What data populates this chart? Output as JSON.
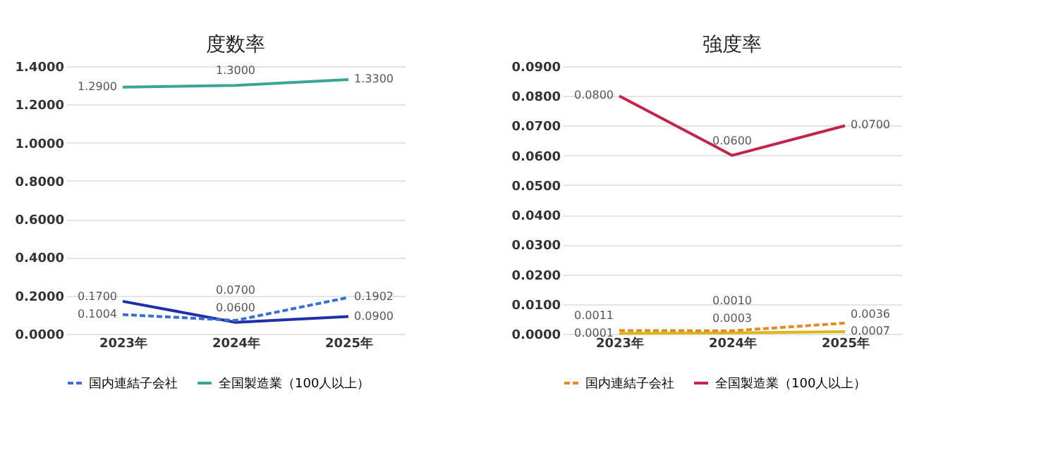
{
  "chart_data": [
    {
      "type": "line",
      "title": "度数率",
      "categories": [
        "2023年",
        "2024年",
        "2025年"
      ],
      "ylim": [
        0,
        1.4
      ],
      "yticks": [
        {
          "value": 0,
          "label": "0.0000"
        },
        {
          "value": 0.2,
          "label": "0.2000"
        },
        {
          "value": 0.4,
          "label": "0.4000"
        },
        {
          "value": 0.6,
          "label": "0.6000"
        },
        {
          "value": 0.8,
          "label": "0.8000"
        },
        {
          "value": 1.0,
          "label": "1.0000"
        },
        {
          "value": 1.2,
          "label": "1.2000"
        },
        {
          "value": 1.4,
          "label": "1.4000"
        }
      ],
      "grid": "y",
      "legend": "bottom",
      "marker": "none",
      "data_labels": true,
      "series": [
        {
          "color": "#1f2fa8",
          "line_style": "solid",
          "values": [
            0.17,
            0.06,
            0.09
          ],
          "value_labels": [
            "0.1700",
            "0.0600",
            "0.0900"
          ]
        },
        {
          "name": "国内連結子会社",
          "color": "#3a6fd0",
          "line_style": "dashed",
          "values": [
            0.1004,
            0.07,
            0.1902
          ],
          "value_labels": [
            "0.1004",
            "0.0700",
            "0.1902"
          ]
        },
        {
          "name": "全国製造業（100人以上）",
          "color": "#3aa597",
          "line_style": "solid",
          "values": [
            1.29,
            1.3,
            1.33
          ],
          "value_labels": [
            "1.2900",
            "1.3000",
            "1.3300"
          ]
        }
      ]
    },
    {
      "type": "line",
      "title": "強度率",
      "categories": [
        "2023年",
        "2024年",
        "2025年"
      ],
      "ylim": [
        0,
        0.09
      ],
      "yticks": [
        {
          "value": 0,
          "label": "0.0000"
        },
        {
          "value": 0.01,
          "label": "0.0100"
        },
        {
          "value": 0.02,
          "label": "0.0200"
        },
        {
          "value": 0.03,
          "label": "0.0300"
        },
        {
          "value": 0.04,
          "label": "0.0400"
        },
        {
          "value": 0.05,
          "label": "0.0500"
        },
        {
          "value": 0.06,
          "label": "0.0600"
        },
        {
          "value": 0.07,
          "label": "0.0700"
        },
        {
          "value": 0.08,
          "label": "0.0800"
        },
        {
          "value": 0.09,
          "label": "0.0900"
        }
      ],
      "grid": "y",
      "legend": "bottom",
      "marker": "none",
      "data_labels": true,
      "series": [
        {
          "color": "#d9b81c",
          "line_style": "solid",
          "values": [
            0.0001,
            0.0003,
            0.0007
          ],
          "value_labels": [
            "0.0001",
            "0.0003",
            "0.0007"
          ]
        },
        {
          "name": "国内連結子会社",
          "color": "#e08a2c",
          "line_style": "dashed",
          "values": [
            0.0011,
            0.001,
            0.0036
          ],
          "value_labels": [
            "0.0011",
            "0.0010",
            "0.0036"
          ]
        },
        {
          "name": "全国製造業（100人以上）",
          "color": "#c0254a",
          "line_style": "solid",
          "values": [
            0.08,
            0.06,
            0.07
          ],
          "value_labels": [
            "0.0800",
            "0.0600",
            "0.0700"
          ]
        }
      ]
    }
  ]
}
